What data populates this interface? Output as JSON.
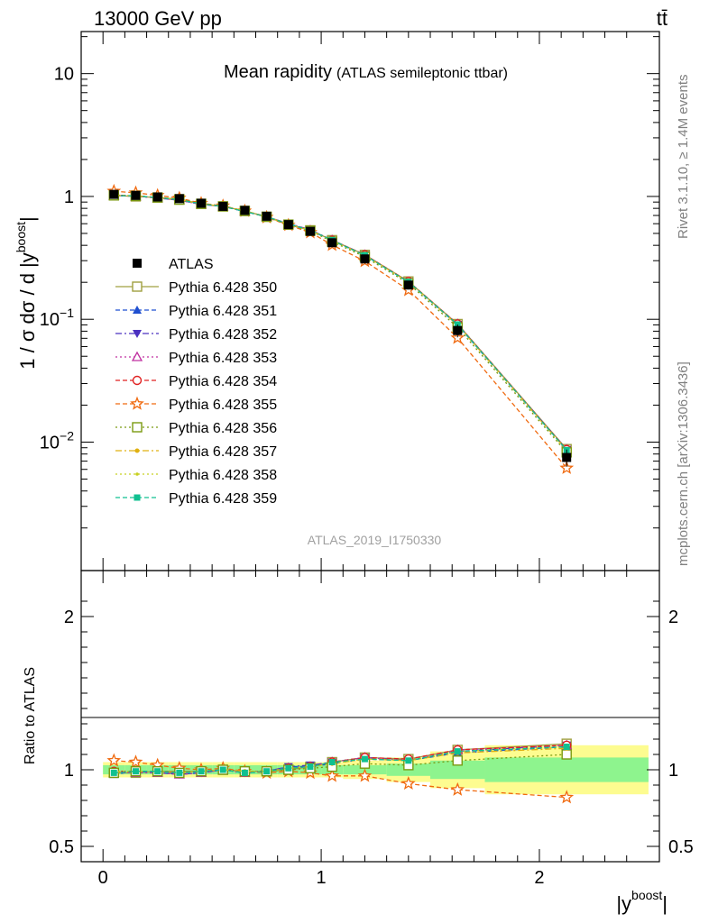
{
  "header": {
    "energy_label": "13000 GeV pp",
    "process_label": "tt̄"
  },
  "side_labels": {
    "rivet": "Rivet 3.1.10, ≥ 1.4M events",
    "mcplots": "mcplots.cern.ch [arXiv:1306.3436]"
  },
  "chart_data": {
    "type": "line",
    "title": "Mean rapidity",
    "subtitle": "(ATLAS semileptonic ttbar)",
    "watermark": "ATLAS_2019_I1750330",
    "xlabel": "|y^boost|",
    "ylabel_main": "1 / σ dσ / d |y^boost|",
    "ylabel_ratio": "Ratio to ATLAS",
    "xlim": [
      -0.1,
      2.55
    ],
    "ylim_main": [
      0.0009,
      22
    ],
    "ylim_ratio": [
      0.4,
      2.3
    ],
    "y_scale_main": "log",
    "x_ticks": [
      "0",
      "1",
      "2"
    ],
    "main_y_ticks": [
      "10",
      "1",
      "10^-1",
      "10^-2"
    ],
    "ratio_y_ticks": [
      "2",
      "1",
      "0.5"
    ],
    "x": [
      0.05,
      0.15,
      0.25,
      0.35,
      0.45,
      0.55,
      0.65,
      0.75,
      0.85,
      0.95,
      1.05,
      1.2,
      1.4,
      1.625,
      2.125
    ],
    "bin_edges": [
      0,
      0.1,
      0.2,
      0.3,
      0.4,
      0.5,
      0.6,
      0.7,
      0.8,
      0.9,
      1.0,
      1.1,
      1.3,
      1.5,
      1.75,
      2.5
    ],
    "data": {
      "name": "ATLAS",
      "values": [
        1.04,
        1.02,
        0.99,
        0.96,
        0.88,
        0.83,
        0.77,
        0.69,
        0.59,
        0.52,
        0.42,
        0.31,
        0.19,
        0.081,
        0.0075
      ]
    },
    "band_stat_rel": [
      0.03,
      0.03,
      0.03,
      0.03,
      0.03,
      0.03,
      0.03,
      0.03,
      0.03,
      0.03,
      0.03,
      0.03,
      0.04,
      0.06,
      0.08
    ],
    "band_tot_rel": [
      0.05,
      0.05,
      0.05,
      0.05,
      0.05,
      0.05,
      0.05,
      0.05,
      0.05,
      0.05,
      0.05,
      0.06,
      0.08,
      0.12,
      0.16
    ],
    "series": [
      {
        "name": "Pythia 6.428 350",
        "color": "#a0a040",
        "marker": "square-open",
        "dash": "",
        "ratio": [
          0.98,
          0.98,
          0.99,
          0.99,
          0.99,
          1.0,
          0.99,
          0.99,
          1.0,
          1.02,
          1.05,
          1.08,
          1.07,
          1.13,
          1.17
        ]
      },
      {
        "name": "Pythia 6.428 351",
        "color": "#1f4fd0",
        "marker": "triangle-up",
        "dash": "5,3",
        "ratio": [
          0.97,
          0.99,
          0.98,
          0.97,
          0.98,
          1.0,
          0.98,
          0.99,
          1.02,
          1.02,
          1.04,
          1.07,
          1.06,
          1.11,
          1.15
        ]
      },
      {
        "name": "Pythia 6.428 352",
        "color": "#4a30c0",
        "marker": "triangle-down",
        "dash": "7,3,2,3",
        "ratio": [
          0.98,
          0.99,
          0.99,
          0.97,
          0.98,
          1.0,
          0.98,
          0.99,
          1.02,
          1.03,
          1.05,
          1.08,
          1.06,
          1.12,
          1.16
        ]
      },
      {
        "name": "Pythia 6.428 353",
        "color": "#c030a0",
        "marker": "triangle-open",
        "dash": "2,3",
        "ratio": [
          0.98,
          0.98,
          0.98,
          0.97,
          0.98,
          1.0,
          0.98,
          0.99,
          1.01,
          1.02,
          1.05,
          1.08,
          1.06,
          1.13,
          1.16
        ]
      },
      {
        "name": "Pythia 6.428 354",
        "color": "#e02020",
        "marker": "circle-open",
        "dash": "5,3",
        "ratio": [
          0.99,
          0.99,
          0.99,
          0.98,
          0.99,
          1.0,
          0.99,
          0.99,
          1.01,
          1.02,
          1.05,
          1.08,
          1.07,
          1.13,
          1.16
        ]
      },
      {
        "name": "Pythia 6.428 355",
        "color": "#f06a10",
        "marker": "star-open",
        "dash": "5,3",
        "ratio": [
          1.06,
          1.05,
          1.03,
          1.01,
          1.0,
          1.01,
          0.99,
          0.98,
          0.99,
          0.98,
          0.96,
          0.96,
          0.91,
          0.87,
          0.82
        ]
      },
      {
        "name": "Pythia 6.428 356",
        "color": "#7a9a10",
        "marker": "square-open",
        "dash": "2,3",
        "ratio": [
          0.98,
          0.99,
          0.99,
          0.98,
          0.99,
          1.0,
          0.99,
          0.99,
          1.0,
          1.01,
          1.02,
          1.04,
          1.03,
          1.06,
          1.1
        ]
      },
      {
        "name": "Pythia 6.428 357",
        "color": "#e0b010",
        "marker": "dot",
        "dash": "7,3,2,3",
        "ratio": [
          0.98,
          0.99,
          0.99,
          0.98,
          0.99,
          1.0,
          0.99,
          0.99,
          1.01,
          1.02,
          1.04,
          1.07,
          1.06,
          1.11,
          1.14
        ]
      },
      {
        "name": "Pythia 6.428 358",
        "color": "#c8d020",
        "marker": "dot-small",
        "dash": "2,3",
        "ratio": [
          0.99,
          0.99,
          0.99,
          0.98,
          0.99,
          1.0,
          0.99,
          0.99,
          1.01,
          1.02,
          1.04,
          1.07,
          1.06,
          1.12,
          1.15
        ]
      },
      {
        "name": "Pythia 6.428 359",
        "color": "#10c090",
        "marker": "square-small",
        "dash": "5,3",
        "ratio": [
          0.98,
          0.99,
          0.99,
          0.98,
          0.99,
          1.0,
          0.98,
          0.99,
          1.01,
          1.02,
          1.05,
          1.07,
          1.06,
          1.12,
          1.15
        ]
      }
    ],
    "colors": {
      "band_stat": "#8ef48e",
      "band_tot": "#fdfc90",
      "data_marker": "#000000",
      "side_text": "#808080"
    }
  }
}
